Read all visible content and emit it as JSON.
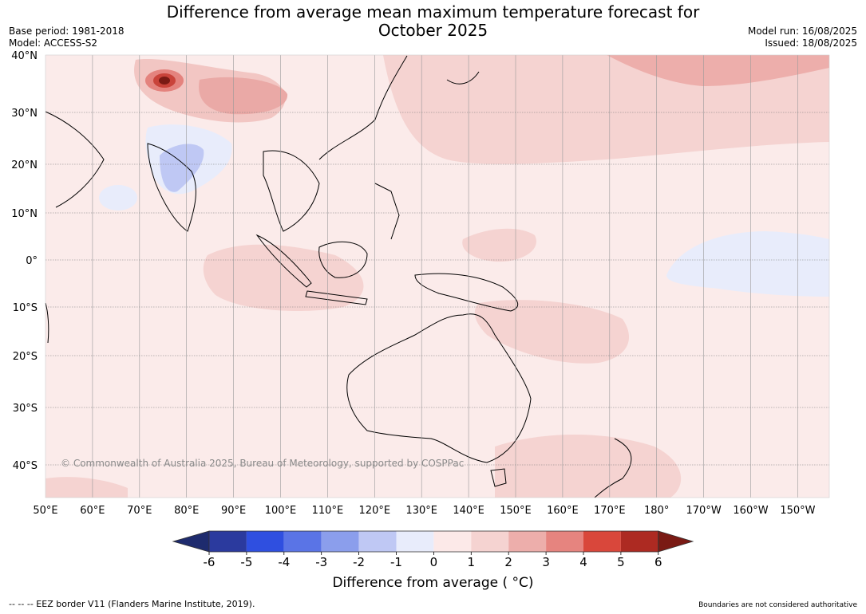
{
  "title": {
    "line1": "Difference from average mean maximum temperature forecast for",
    "line2": "October 2025"
  },
  "meta": {
    "base_period": "Base period: 1981-2018",
    "model": "Model: ACCESS-S2",
    "model_run": "Model run: 16/08/2025",
    "issued": "Issued: 18/08/2025"
  },
  "map": {
    "lon_ticks": [
      "50°E",
      "60°E",
      "70°E",
      "80°E",
      "90°E",
      "100°E",
      "110°E",
      "120°E",
      "130°E",
      "140°E",
      "150°E",
      "160°E",
      "170°E",
      "180°",
      "170°W",
      "160°W",
      "150°W"
    ],
    "lat_ticks": [
      "40°N",
      "30°N",
      "20°N",
      "10°N",
      "0°",
      "10°S",
      "20°S",
      "30°S",
      "40°S"
    ],
    "copyright": "© Commonwealth of Australia 2025, Bureau of Meteorology, supported by COSPPac"
  },
  "colorbar": {
    "labels": [
      "-6",
      "-5",
      "-4",
      "-3",
      "-2",
      "-1",
      "0",
      "1",
      "2",
      "3",
      "4",
      "5",
      "6"
    ],
    "colors": [
      "#2b3a9e",
      "#2f4fe0",
      "#5a74e6",
      "#8b9eec",
      "#bfc8f4",
      "#e8ecfb",
      "#fce9e8",
      "#f5d3d1",
      "#edaeab",
      "#e6847f",
      "#d9473b",
      "#ad2a22"
    ],
    "low_extend_color": "#1e2b6e",
    "high_extend_color": "#7a1a14",
    "title": "Difference from average ( °C)"
  },
  "footer": {
    "eez": "--  --  -- EEZ border V11 (Flanders Marine Institute, 2019).",
    "disclaimer": "Boundaries are not considered authoritative"
  }
}
